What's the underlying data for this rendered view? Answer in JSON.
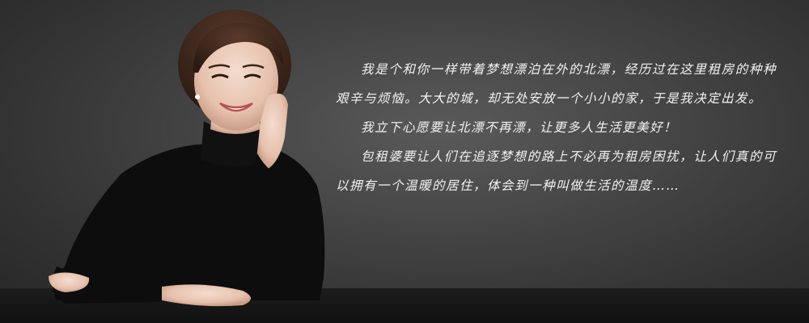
{
  "intro": {
    "paragraphs": [
      "我是个和你一样带着梦想漂泊在外的北漂，经历过在这里租房的种种艰辛与烦恼。大大的城，却无处安放一个小小的家，于是我决定出发。",
      "我立下心愿要让北漂不再漂，让更多人生活更美好！",
      "包租婆要让人们在追逐梦想的路上不必再为租房困扰，让人们真的可以拥有一个温暖的居住，体会到一种叫做生活的温度……"
    ]
  },
  "colors": {
    "background": "#464646",
    "text": "#f2f2f2",
    "table": "#141414",
    "sweater": "#0d0d0d"
  },
  "icons": {
    "portrait": "smiling-woman-portrait"
  }
}
